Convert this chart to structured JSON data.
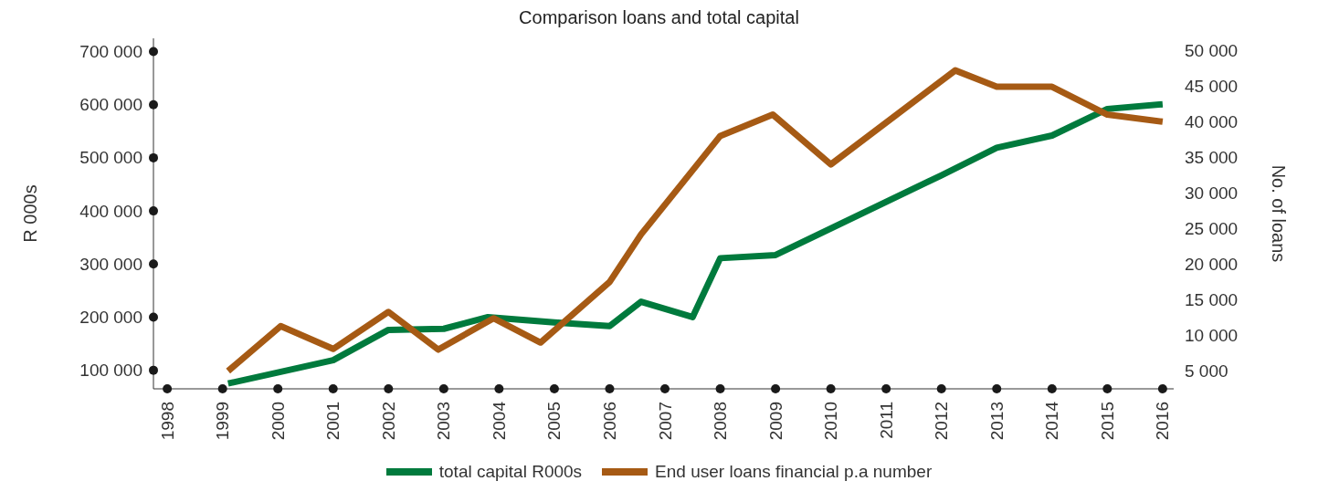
{
  "chart_data": {
    "type": "line",
    "title": "Comparison loans and total capital",
    "ylabel": "R 000s",
    "y2label": "No. of loans",
    "xlim": [
      1997.75,
      2016.2
    ],
    "xticks": [
      1998,
      1999,
      2000,
      2001,
      2002,
      2003,
      2004,
      2005,
      2006,
      2007,
      2008,
      2009,
      2010,
      2011,
      2012,
      2013,
      2014,
      2015,
      2016
    ],
    "ylim": [
      65000,
      725000
    ],
    "yticks": [
      {
        "value": 100000,
        "label": "100 000"
      },
      {
        "value": 200000,
        "label": "200 000"
      },
      {
        "value": 300000,
        "label": "300 000"
      },
      {
        "value": 400000,
        "label": "400 000"
      },
      {
        "value": 500000,
        "label": "500 000"
      },
      {
        "value": 600000,
        "label": "600 000"
      },
      {
        "value": 700000,
        "label": "700 000"
      }
    ],
    "y2lim": [
      2500,
      51700
    ],
    "y2ticks": [
      {
        "value": 5000,
        "label": "5 000"
      },
      {
        "value": 10000,
        "label": "10 000"
      },
      {
        "value": 15000,
        "label": "15 000"
      },
      {
        "value": 20000,
        "label": "20 000"
      },
      {
        "value": 25000,
        "label": "25 000"
      },
      {
        "value": 30000,
        "label": "30 000"
      },
      {
        "value": 35000,
        "label": "35 000"
      },
      {
        "value": 40000,
        "label": "40 000"
      },
      {
        "value": 45000,
        "label": "45 000"
      },
      {
        "value": 50000,
        "label": "50 000"
      }
    ],
    "grid": false,
    "legend": "bottom",
    "series": [
      {
        "name": "total capital R000s",
        "color": "#007a3d",
        "x": [
          1999.1,
          2001,
          2002,
          2003,
          2003.8,
          2005,
          2006,
          2006.57,
          2007.5,
          2008,
          2009,
          2012,
          2013,
          2014,
          2015,
          2016
        ],
        "values": [
          75000,
          119000,
          176000,
          178000,
          200000,
          190000,
          183000,
          229000,
          200000,
          311000,
          317000,
          467000,
          519000,
          542000,
          592000,
          601000
        ]
      },
      {
        "name": "End user loans financial p.a number",
        "color": "#a65a14",
        "axis": "y2",
        "x": [
          1999.1,
          2000.05,
          2001,
          2002,
          2002.9,
          2003.9,
          2004.75,
          2006,
          2006.57,
          2008,
          2008.95,
          2010,
          2012.25,
          2013,
          2014,
          2015,
          2016
        ],
        "values": [
          5000,
          11300,
          8100,
          13300,
          8000,
          12400,
          9000,
          17500,
          24200,
          38000,
          41000,
          34000,
          47200,
          44900,
          44900,
          41000,
          40000
        ]
      }
    ]
  }
}
